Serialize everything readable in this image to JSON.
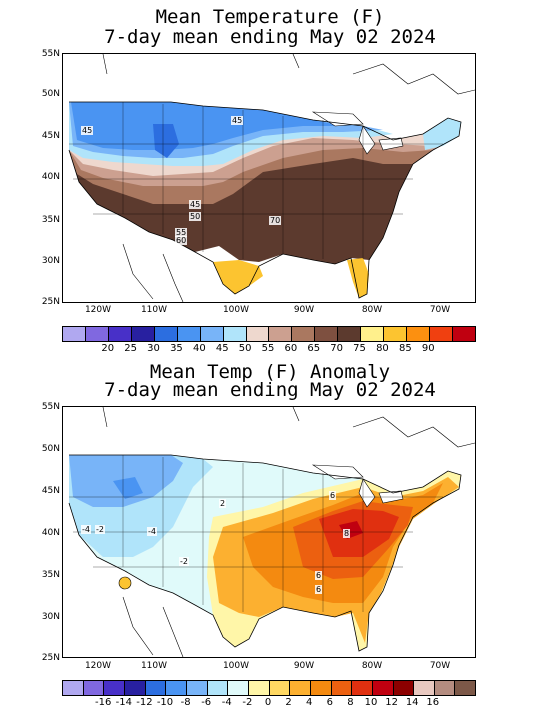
{
  "top_panel": {
    "title_line1": "Mean Temperature (F)",
    "title_line2": "7-day mean ending May 02 2024",
    "lat_labels": [
      "55N",
      "50N",
      "45N",
      "40N",
      "35N",
      "30N",
      "25N"
    ],
    "lon_labels": [
      "120W",
      "110W",
      "100W",
      "90W",
      "80W",
      "70W"
    ],
    "colorbar": {
      "colors": [
        "#b0a8f0",
        "#8068e0",
        "#4830c8",
        "#2820a0",
        "#2c6ee0",
        "#4a94f2",
        "#78b4f8",
        "#b0e4fa",
        "#eed8ce",
        "#cca090",
        "#aa7860",
        "#7e5040",
        "#5c3a2e",
        "#fff08c",
        "#fcc430",
        "#fc9010",
        "#f04010",
        "#c00010"
      ],
      "labels": [
        "20",
        "25",
        "30",
        "35",
        "40",
        "45",
        "50",
        "55",
        "60",
        "65",
        "70",
        "75",
        "80",
        "85",
        "90"
      ]
    },
    "contour_labels": [
      "45",
      "45",
      "45",
      "50",
      "55",
      "60",
      "70"
    ]
  },
  "bottom_panel": {
    "title_line1": "Mean Temp (F) Anomaly",
    "title_line2": "7-day mean ending May 02 2024",
    "lat_labels": [
      "55N",
      "50N",
      "45N",
      "40N",
      "35N",
      "30N",
      "25N"
    ],
    "lon_labels": [
      "120W",
      "110W",
      "100W",
      "90W",
      "80W",
      "70W"
    ],
    "colorbar": {
      "colors": [
        "#b0a8f0",
        "#8068e0",
        "#4830c8",
        "#2820a0",
        "#2c6ee0",
        "#4a94f2",
        "#78b4f8",
        "#b0e4fa",
        "#e0fafa",
        "#fff6a8",
        "#ffd862",
        "#fcb030",
        "#f48a10",
        "#ec6010",
        "#e03010",
        "#c00010",
        "#8c0000",
        "#e8c8c0",
        "#b48c80",
        "#7c5848"
      ],
      "labels": [
        "-16",
        "-14",
        "-12",
        "-10",
        "-8",
        "-6",
        "-4",
        "-2",
        "0",
        "2",
        "4",
        "6",
        "8",
        "10",
        "12",
        "14",
        "16"
      ]
    },
    "contour_labels": [
      "-4",
      "-2",
      "-4",
      "-2",
      "2",
      "6",
      "6",
      "8",
      "6"
    ]
  }
}
